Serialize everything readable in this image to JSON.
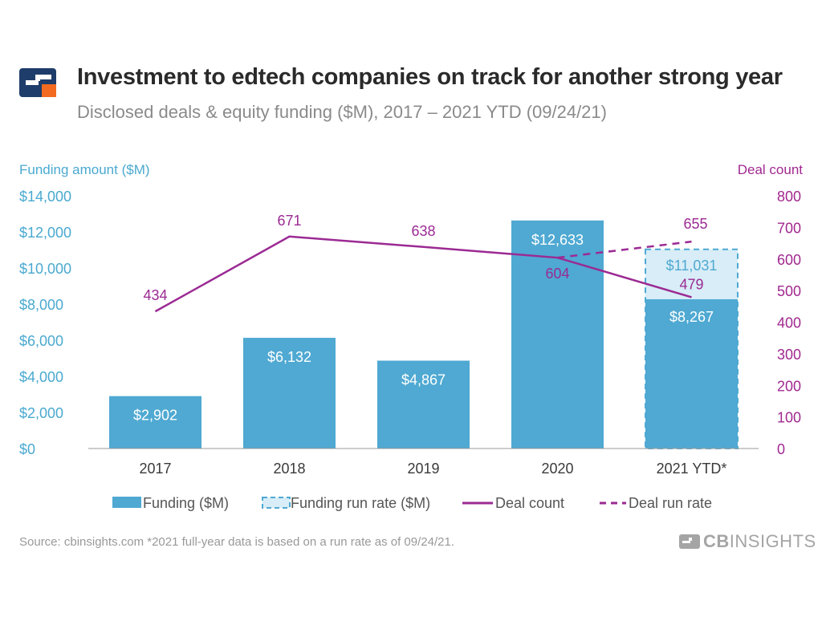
{
  "header": {
    "title": "Investment to edtech companies on track for another strong year",
    "subtitle": "Disclosed deals & equity funding ($M), 2017 – 2021 YTD (09/24/21)"
  },
  "footer": {
    "source": "Source: cbinsights.com  *2021 full-year data is based on a run rate as of 09/24/21.",
    "brand_prefix": "CB",
    "brand_suffix": "INSIGHTS"
  },
  "colors": {
    "funding": "#4fa9d2",
    "run_rate_fill": "#d8edf7",
    "deal_line": "#9b2a93",
    "left_axis": "#4aa9d0",
    "right_axis": "#a1288f",
    "logo_blue": "#1f3d6b",
    "logo_orange": "#f26b21"
  },
  "chart_data": {
    "type": "bar",
    "categories": [
      "2017",
      "2018",
      "2019",
      "2020",
      "2021 YTD*"
    ],
    "left_axis": {
      "label": "Funding amount ($M)",
      "ylim": [
        0,
        14000
      ],
      "ticks": [
        "$0",
        "$2,000",
        "$4,000",
        "$6,000",
        "$8,000",
        "$10,000",
        "$12,000",
        "$14,000"
      ],
      "tick_values": [
        0,
        2000,
        4000,
        6000,
        8000,
        10000,
        12000,
        14000
      ]
    },
    "right_axis": {
      "label": "Deal count",
      "ylim": [
        0,
        800
      ],
      "ticks": [
        "0",
        "100",
        "200",
        "300",
        "400",
        "500",
        "600",
        "700",
        "800"
      ],
      "tick_values": [
        0,
        100,
        200,
        300,
        400,
        500,
        600,
        700,
        800
      ]
    },
    "series": [
      {
        "name": "Funding ($M)",
        "type": "bar",
        "axis": "left",
        "values": [
          2902,
          6132,
          4867,
          12633,
          8267
        ],
        "labels": [
          "$2,902",
          "$6,132",
          "$4,867",
          "$12,633",
          "$8,267"
        ]
      },
      {
        "name": "Funding run rate ($M)",
        "type": "bar-dashed",
        "axis": "left",
        "values": [
          null,
          null,
          null,
          null,
          11031
        ],
        "labels": [
          null,
          null,
          null,
          null,
          "$11,031"
        ]
      },
      {
        "name": "Deal count",
        "type": "line",
        "axis": "right",
        "values": [
          434,
          671,
          638,
          604,
          479
        ],
        "labels": [
          "434",
          "671",
          "638",
          "604",
          "479"
        ]
      },
      {
        "name": "Deal run rate",
        "type": "line-dashed",
        "axis": "right",
        "values": [
          null,
          null,
          null,
          604,
          655
        ],
        "labels": [
          null,
          null,
          null,
          null,
          "655"
        ]
      }
    ],
    "legend": [
      "Funding ($M)",
      "Funding run rate ($M)",
      "Deal count",
      "Deal run rate"
    ],
    "legend_position": "bottom",
    "grid": false
  }
}
